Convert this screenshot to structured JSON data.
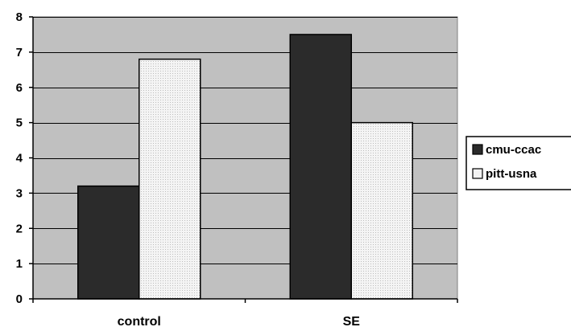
{
  "chart_data": {
    "type": "bar",
    "categories": [
      "control",
      "SE"
    ],
    "series": [
      {
        "name": "cmu-ccac",
        "values": [
          3.2,
          7.5
        ]
      },
      {
        "name": "pitt-usna",
        "values": [
          6.8,
          5.0
        ]
      }
    ],
    "ylim": [
      0,
      8
    ],
    "yticks": [
      "0",
      "1",
      "2",
      "3",
      "4",
      "5",
      "6",
      "7",
      "8"
    ],
    "grid": true,
    "legend_position": "right",
    "colors": {
      "plot_background": "#c0c0c0",
      "cmu-ccac": "#2b2b2b",
      "pitt-usna": "#f2f2f2"
    }
  }
}
